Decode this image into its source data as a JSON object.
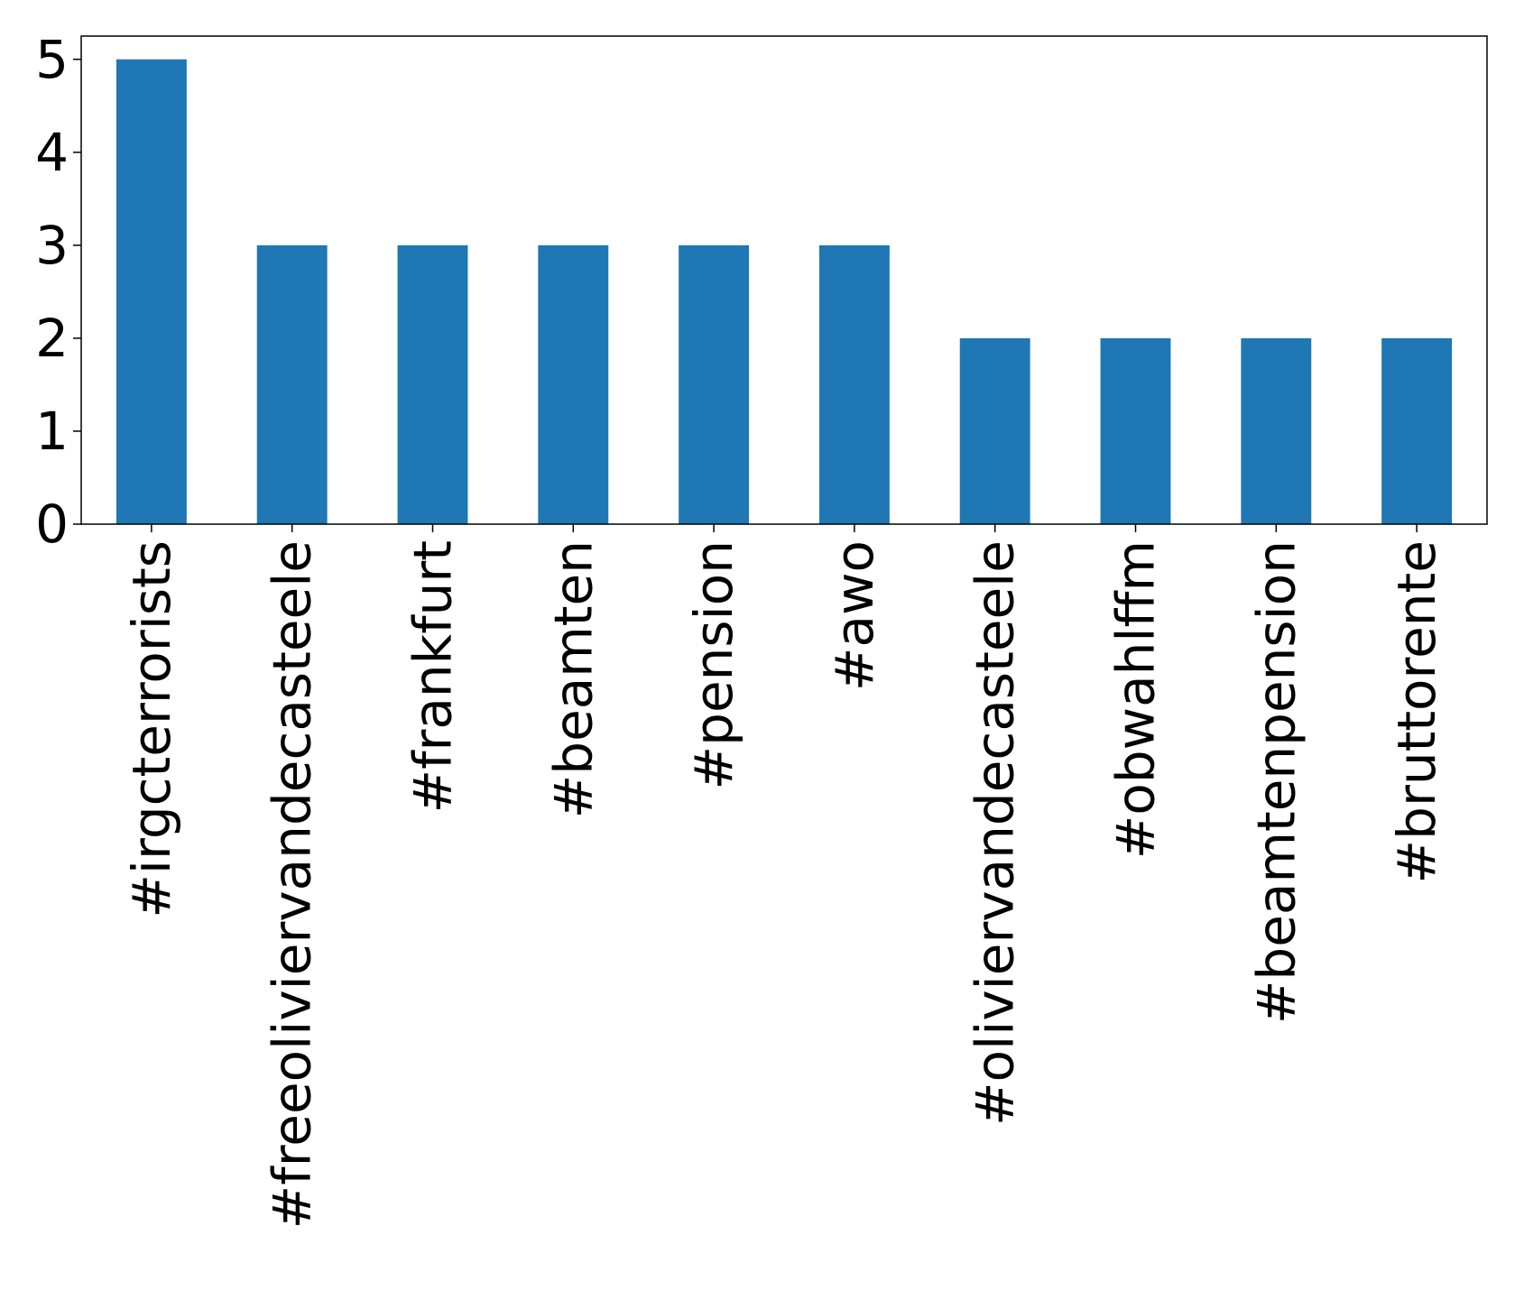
{
  "chart_data": {
    "type": "bar",
    "categories": [
      "#irgcterrorists",
      "#freeoliviervandecasteele",
      "#frankfurt",
      "#beamten",
      "#pension",
      "#awo",
      "#oliviervandecasteele",
      "#obwahlffm",
      "#beamtenpension",
      "#bruttorente"
    ],
    "values": [
      5,
      3,
      3,
      3,
      3,
      3,
      2,
      2,
      2,
      2
    ],
    "title": "",
    "xlabel": "",
    "ylabel": "",
    "ylim": [
      0,
      5.25
    ],
    "yticks": [
      0,
      1,
      2,
      3,
      4,
      5
    ],
    "grid": false,
    "legend": "none",
    "bar_color": "#1f77b4"
  }
}
